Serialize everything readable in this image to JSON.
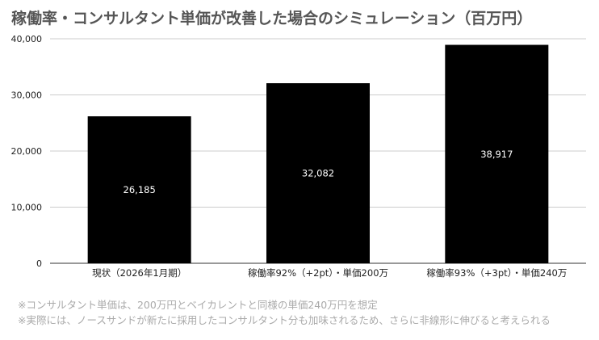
{
  "chart_data": {
    "type": "bar",
    "title": "稼働率・コンサルタント単価が改善した場合のシミュレーション（百万円）",
    "categories": [
      "現状（2026年1月期）",
      "稼働率92%（+2pt）・単価200万",
      "稼働率93%（+3pt）・単価240万"
    ],
    "values": [
      26185,
      32082,
      38917
    ],
    "data_labels": [
      "26,185",
      "32,082",
      "38,917"
    ],
    "yticks": [
      0,
      10000,
      20000,
      30000,
      40000
    ],
    "ytick_labels": [
      "0",
      "10,000",
      "20,000",
      "30,000",
      "40,000"
    ],
    "ylim": [
      0,
      40000
    ],
    "xlabel": "",
    "ylabel": "",
    "grid": true,
    "bar_color": "#000000",
    "label_color": "#ffffff"
  },
  "notes": [
    "※コンサルタント単価は、200万円とベイカレントと同様の単価240万円を想定",
    "※実際には、ノースサンドが新たに採用したコンサルタント分も加味されるため、さらに非線形に伸びると考えられる"
  ]
}
